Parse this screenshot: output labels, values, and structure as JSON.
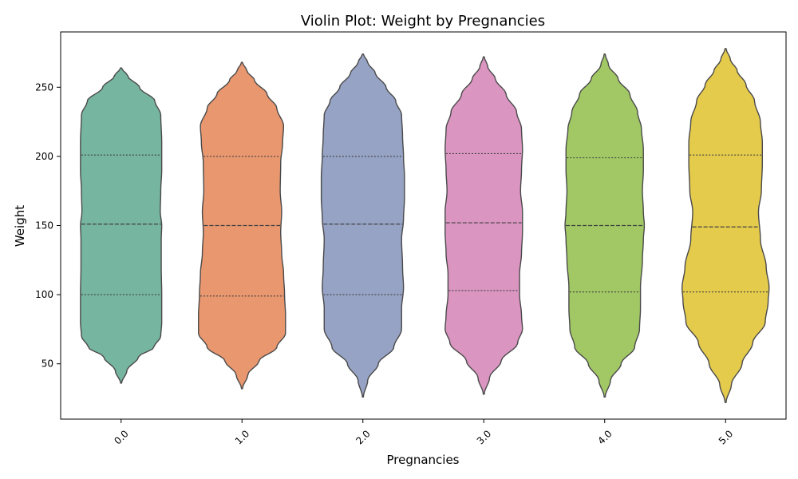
{
  "chart_data": {
    "type": "violin",
    "title": "Violin Plot: Weight by Pregnancies",
    "xlabel": "Pregnancies",
    "ylabel": "Weight",
    "categories": [
      "0.0",
      "1.0",
      "2.0",
      "3.0",
      "4.0",
      "5.0"
    ],
    "ylim": [
      10,
      290
    ],
    "yticks": [
      50,
      100,
      150,
      200,
      250
    ],
    "grid": false,
    "colors": [
      "#76b5a0",
      "#e9976f",
      "#96a3c4",
      "#da95c1",
      "#a1c864",
      "#e5cb4c"
    ],
    "violins": [
      {
        "category": "0.0",
        "min": 36,
        "max": 264,
        "q1": 100,
        "median": 151,
        "q3": 201,
        "profile": [
          [
            36,
            0.01
          ],
          [
            45,
            0.12
          ],
          [
            55,
            0.36
          ],
          [
            62,
            0.68
          ],
          [
            70,
            0.82
          ],
          [
            80,
            0.84
          ],
          [
            100,
            0.84
          ],
          [
            120,
            0.83
          ],
          [
            140,
            0.83
          ],
          [
            150,
            0.84
          ],
          [
            160,
            0.81
          ],
          [
            175,
            0.82
          ],
          [
            190,
            0.84
          ],
          [
            210,
            0.84
          ],
          [
            230,
            0.82
          ],
          [
            240,
            0.7
          ],
          [
            250,
            0.38
          ],
          [
            258,
            0.14
          ],
          [
            264,
            0.01
          ]
        ]
      },
      {
        "category": "1.0",
        "min": 32,
        "max": 268,
        "q1": 99,
        "median": 150,
        "q3": 200,
        "profile": [
          [
            32,
            0.01
          ],
          [
            42,
            0.12
          ],
          [
            52,
            0.35
          ],
          [
            62,
            0.72
          ],
          [
            72,
            0.9
          ],
          [
            85,
            0.9
          ],
          [
            100,
            0.88
          ],
          [
            115,
            0.86
          ],
          [
            130,
            0.82
          ],
          [
            145,
            0.8
          ],
          [
            160,
            0.82
          ],
          [
            175,
            0.79
          ],
          [
            195,
            0.8
          ],
          [
            210,
            0.84
          ],
          [
            222,
            0.86
          ],
          [
            235,
            0.72
          ],
          [
            245,
            0.52
          ],
          [
            255,
            0.26
          ],
          [
            262,
            0.1
          ],
          [
            268,
            0.01
          ]
        ]
      },
      {
        "category": "2.0",
        "min": 26,
        "max": 274,
        "q1": 100,
        "median": 151,
        "q3": 200,
        "profile": [
          [
            26,
            0.01
          ],
          [
            38,
            0.1
          ],
          [
            50,
            0.32
          ],
          [
            62,
            0.64
          ],
          [
            75,
            0.8
          ],
          [
            90,
            0.8
          ],
          [
            105,
            0.84
          ],
          [
            120,
            0.82
          ],
          [
            140,
            0.8
          ],
          [
            155,
            0.84
          ],
          [
            170,
            0.86
          ],
          [
            185,
            0.86
          ],
          [
            200,
            0.84
          ],
          [
            215,
            0.82
          ],
          [
            230,
            0.8
          ],
          [
            240,
            0.68
          ],
          [
            250,
            0.48
          ],
          [
            260,
            0.26
          ],
          [
            268,
            0.1
          ],
          [
            274,
            0.01
          ]
        ]
      },
      {
        "category": "3.0",
        "min": 28,
        "max": 272,
        "q1": 103,
        "median": 152,
        "q3": 202,
        "profile": [
          [
            28,
            0.01
          ],
          [
            40,
            0.12
          ],
          [
            52,
            0.36
          ],
          [
            65,
            0.7
          ],
          [
            75,
            0.8
          ],
          [
            85,
            0.78
          ],
          [
            100,
            0.74
          ],
          [
            115,
            0.74
          ],
          [
            130,
            0.78
          ],
          [
            145,
            0.8
          ],
          [
            160,
            0.8
          ],
          [
            175,
            0.76
          ],
          [
            190,
            0.78
          ],
          [
            205,
            0.8
          ],
          [
            220,
            0.78
          ],
          [
            232,
            0.68
          ],
          [
            245,
            0.46
          ],
          [
            256,
            0.24
          ],
          [
            265,
            0.08
          ],
          [
            272,
            0.01
          ]
        ]
      },
      {
        "category": "4.0",
        "min": 26,
        "max": 274,
        "q1": 102,
        "median": 150,
        "q3": 199,
        "profile": [
          [
            26,
            0.01
          ],
          [
            38,
            0.12
          ],
          [
            50,
            0.34
          ],
          [
            62,
            0.62
          ],
          [
            75,
            0.72
          ],
          [
            90,
            0.74
          ],
          [
            105,
            0.74
          ],
          [
            125,
            0.78
          ],
          [
            140,
            0.8
          ],
          [
            150,
            0.82
          ],
          [
            160,
            0.8
          ],
          [
            175,
            0.78
          ],
          [
            190,
            0.8
          ],
          [
            205,
            0.8
          ],
          [
            220,
            0.76
          ],
          [
            232,
            0.68
          ],
          [
            245,
            0.52
          ],
          [
            256,
            0.28
          ],
          [
            266,
            0.08
          ],
          [
            274,
            0.01
          ]
        ]
      },
      {
        "category": "5.0",
        "min": 22,
        "max": 278,
        "q1": 102,
        "median": 149,
        "q3": 201,
        "profile": [
          [
            22,
            0.01
          ],
          [
            35,
            0.12
          ],
          [
            50,
            0.34
          ],
          [
            65,
            0.56
          ],
          [
            80,
            0.82
          ],
          [
            95,
            0.88
          ],
          [
            105,
            0.9
          ],
          [
            120,
            0.84
          ],
          [
            140,
            0.72
          ],
          [
            160,
            0.68
          ],
          [
            175,
            0.74
          ],
          [
            195,
            0.76
          ],
          [
            210,
            0.76
          ],
          [
            225,
            0.72
          ],
          [
            240,
            0.6
          ],
          [
            252,
            0.42
          ],
          [
            262,
            0.24
          ],
          [
            270,
            0.1
          ],
          [
            278,
            0.01
          ]
        ]
      }
    ]
  }
}
